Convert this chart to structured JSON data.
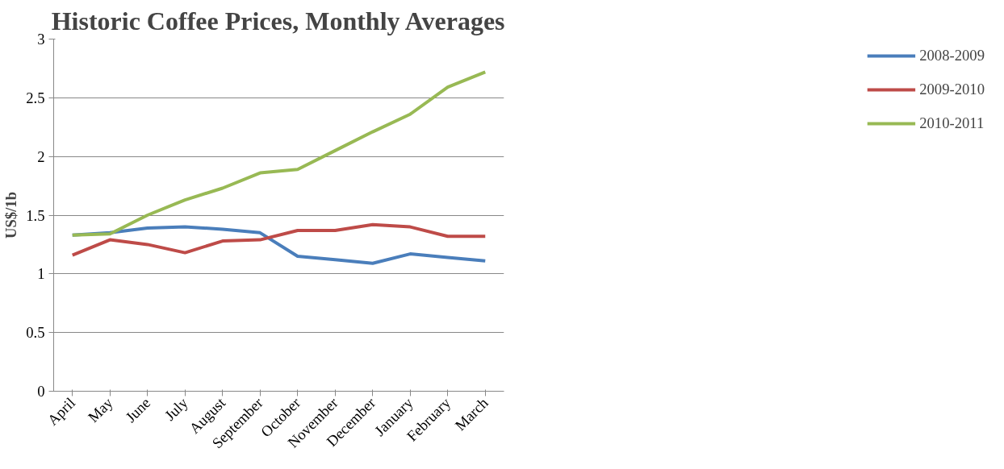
{
  "chart_data": {
    "type": "line",
    "title": "Historic Coffee Prices, Monthly Averages",
    "ylabel": "US$/1b",
    "categories": [
      "April",
      "May",
      "June",
      "July",
      "August",
      "September",
      "October",
      "November",
      "December",
      "January",
      "February",
      "March"
    ],
    "series": [
      {
        "name": "2008-2009",
        "color": "#4a7ebb",
        "values": [
          1.33,
          1.35,
          1.39,
          1.4,
          1.38,
          1.35,
          1.15,
          1.12,
          1.09,
          1.17,
          1.14,
          1.11
        ]
      },
      {
        "name": "2009-2010",
        "color": "#be4b48",
        "values": [
          1.16,
          1.29,
          1.25,
          1.18,
          1.28,
          1.29,
          1.37,
          1.37,
          1.42,
          1.4,
          1.32,
          1.32
        ]
      },
      {
        "name": "2010-2011",
        "color": "#98b954",
        "values": [
          1.33,
          1.34,
          1.5,
          1.63,
          1.73,
          1.86,
          1.89,
          2.05,
          2.21,
          2.36,
          2.59,
          2.72
        ]
      }
    ],
    "ylim": [
      0,
      3
    ],
    "yticks": [
      0,
      0.5,
      1,
      1.5,
      2,
      2.5,
      3
    ],
    "grid": "y",
    "legend": "right",
    "marker": "none",
    "line_style": "solid"
  }
}
